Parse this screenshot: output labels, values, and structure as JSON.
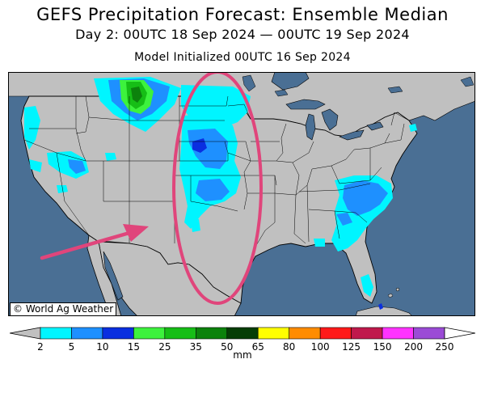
{
  "title": {
    "line1": "GEFS Precipitation Forecast: Ensemble Median",
    "line2": "Day 2: 00UTC 18 Sep 2024 — 00UTC 19 Sep 2024",
    "line3": "Model Initialized 00UTC 16 Sep 2024"
  },
  "map": {
    "credit": "© World Ag Weather",
    "region": "Contiguous United States",
    "land_color": "#c0c0c0",
    "water_color": "#4a6f94",
    "annotations": {
      "ellipse_color": "#e0457b",
      "arrow_color": "#e0457b"
    }
  },
  "colorbar": {
    "unit": "mm",
    "tick_labels": [
      "2",
      "5",
      "10",
      "15",
      "25",
      "35",
      "50",
      "65",
      "80",
      "100",
      "125",
      "150",
      "200",
      "250"
    ],
    "colors": [
      "#00f5ff",
      "#1e90ff",
      "#0a2fe0",
      "#3df23d",
      "#16be16",
      "#0c820c",
      "#063e06",
      "#ffff00",
      "#ff8c00",
      "#ff1a1a",
      "#c0194c",
      "#ff33ff",
      "#9b4bd6"
    ],
    "below_color": "#c0c0c0",
    "above_color": "#ffffff"
  }
}
